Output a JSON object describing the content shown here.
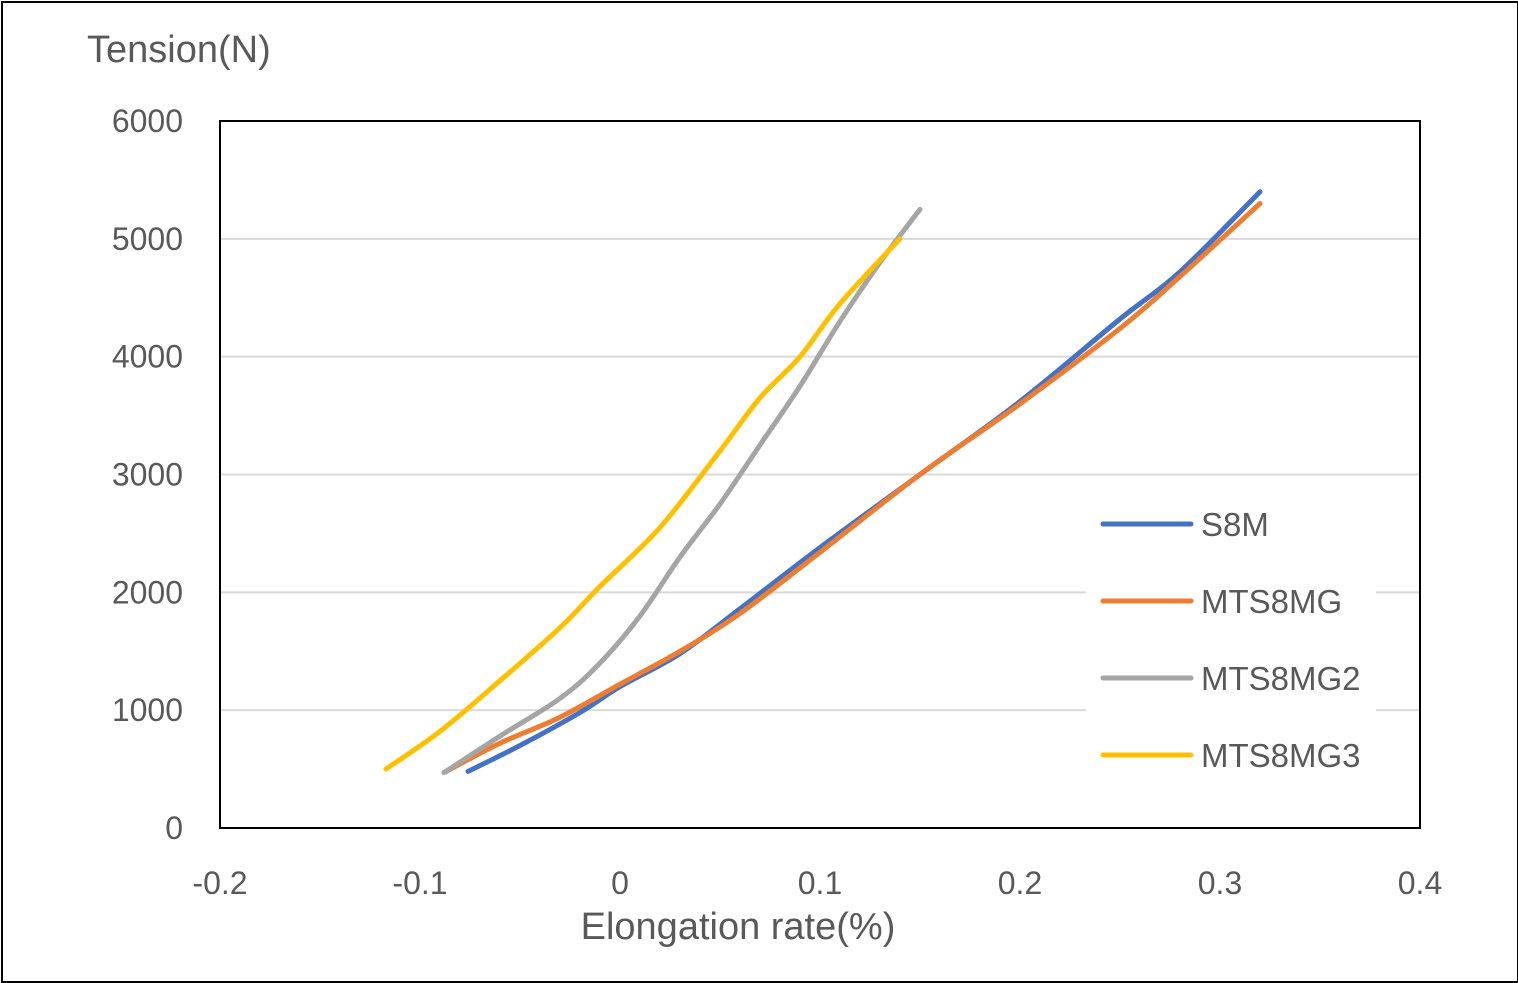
{
  "chart_data": {
    "type": "line",
    "title": "",
    "xlabel": "Elongation rate(%)",
    "ylabel": "Tension(N)",
    "xlim": [
      -0.2,
      0.4
    ],
    "ylim": [
      0,
      6000
    ],
    "x_ticks": [
      "-0.2",
      "-0.1",
      "0",
      "0.1",
      "0.2",
      "0.3",
      "0.4"
    ],
    "y_ticks": [
      "0",
      "1000",
      "2000",
      "3000",
      "4000",
      "5000",
      "6000"
    ],
    "grid": "horizontal",
    "legend_position": "right",
    "series": [
      {
        "name": "S8M",
        "color": "#4472C4",
        "points": [
          [
            -0.076,
            480
          ],
          [
            -0.05,
            700
          ],
          [
            -0.02,
            980
          ],
          [
            0.0,
            1200
          ],
          [
            0.03,
            1480
          ],
          [
            0.06,
            1860
          ],
          [
            0.1,
            2380
          ],
          [
            0.15,
            3000
          ],
          [
            0.2,
            3620
          ],
          [
            0.25,
            4320
          ],
          [
            0.28,
            4720
          ],
          [
            0.32,
            5400
          ]
        ]
      },
      {
        "name": "MTS8MG",
        "color": "#ED7D31",
        "points": [
          [
            -0.088,
            470
          ],
          [
            -0.06,
            720
          ],
          [
            -0.03,
            940
          ],
          [
            0.0,
            1220
          ],
          [
            0.03,
            1500
          ],
          [
            0.06,
            1820
          ],
          [
            0.1,
            2340
          ],
          [
            0.15,
            3000
          ],
          [
            0.2,
            3600
          ],
          [
            0.25,
            4240
          ],
          [
            0.28,
            4680
          ],
          [
            0.32,
            5300
          ]
        ]
      },
      {
        "name": "MTS8MG2",
        "color": "#A5A5A5",
        "points": [
          [
            -0.088,
            470
          ],
          [
            -0.06,
            780
          ],
          [
            -0.03,
            1100
          ],
          [
            -0.01,
            1400
          ],
          [
            0.01,
            1800
          ],
          [
            0.03,
            2300
          ],
          [
            0.05,
            2750
          ],
          [
            0.07,
            3250
          ],
          [
            0.09,
            3750
          ],
          [
            0.11,
            4300
          ],
          [
            0.13,
            4800
          ],
          [
            0.15,
            5250
          ]
        ]
      },
      {
        "name": "MTS8MG3",
        "color": "#FFC000",
        "points": [
          [
            -0.117,
            500
          ],
          [
            -0.09,
            820
          ],
          [
            -0.06,
            1250
          ],
          [
            -0.03,
            1700
          ],
          [
            -0.01,
            2050
          ],
          [
            0.02,
            2550
          ],
          [
            0.05,
            3200
          ],
          [
            0.07,
            3650
          ],
          [
            0.09,
            4000
          ],
          [
            0.11,
            4450
          ],
          [
            0.14,
            5000
          ]
        ]
      }
    ]
  }
}
